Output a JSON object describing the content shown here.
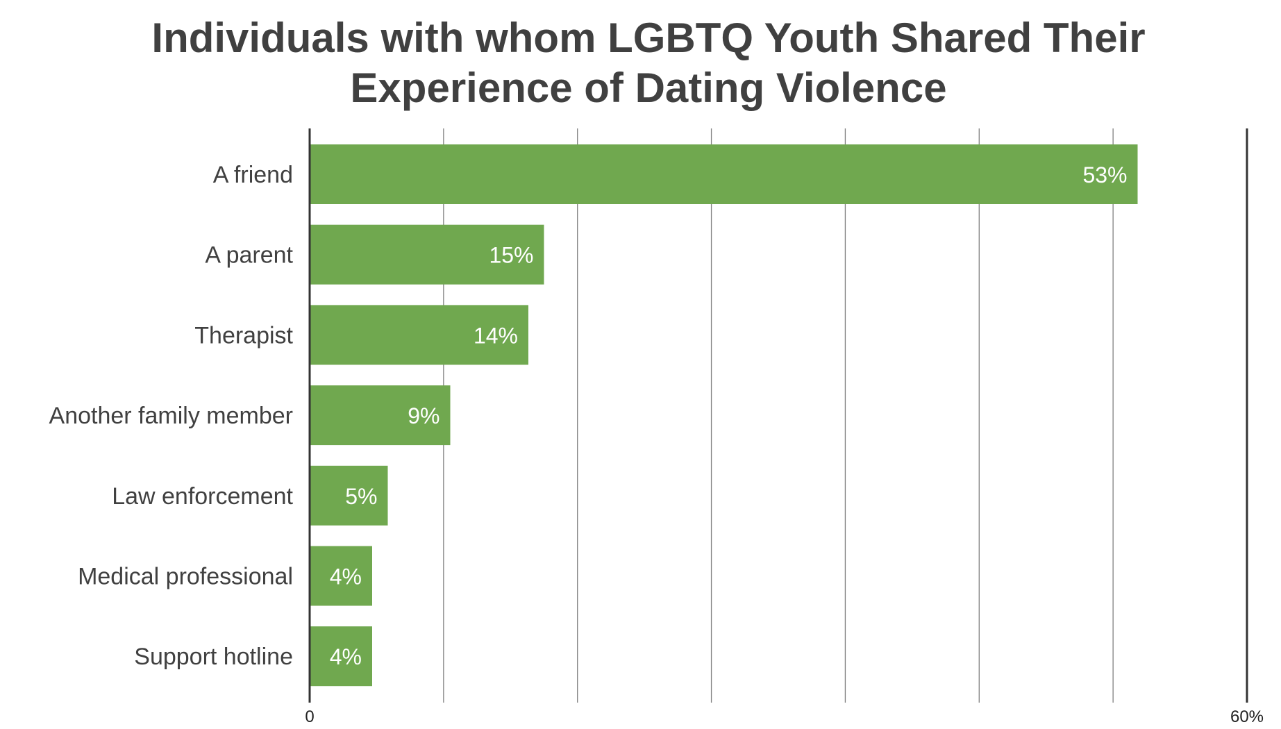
{
  "chart_data": {
    "type": "bar",
    "orientation": "horizontal",
    "title": [
      "Individuals with whom LGBTQ Youth Shared Their",
      "Experience of Dating Violence"
    ],
    "categories": [
      "A friend",
      "A parent",
      "Therapist",
      "Another family member",
      "Law enforcement",
      "Medical professional",
      "Support hotline"
    ],
    "values": [
      53,
      15,
      14,
      9,
      5,
      4,
      4
    ],
    "data_labels": [
      "53%",
      "15%",
      "14%",
      "9%",
      "5%",
      "4%",
      "4%"
    ],
    "xlim": [
      0,
      60
    ],
    "gridline_count": 7,
    "tick_labels": {
      "min": "0",
      "max": "60%"
    },
    "grid": true,
    "legend": "none",
    "colors": {
      "bar": "#70a84f",
      "gridline": "#7f7f7f",
      "axis": "#333333",
      "text": "#404040",
      "value_text": "#ffffff"
    }
  }
}
